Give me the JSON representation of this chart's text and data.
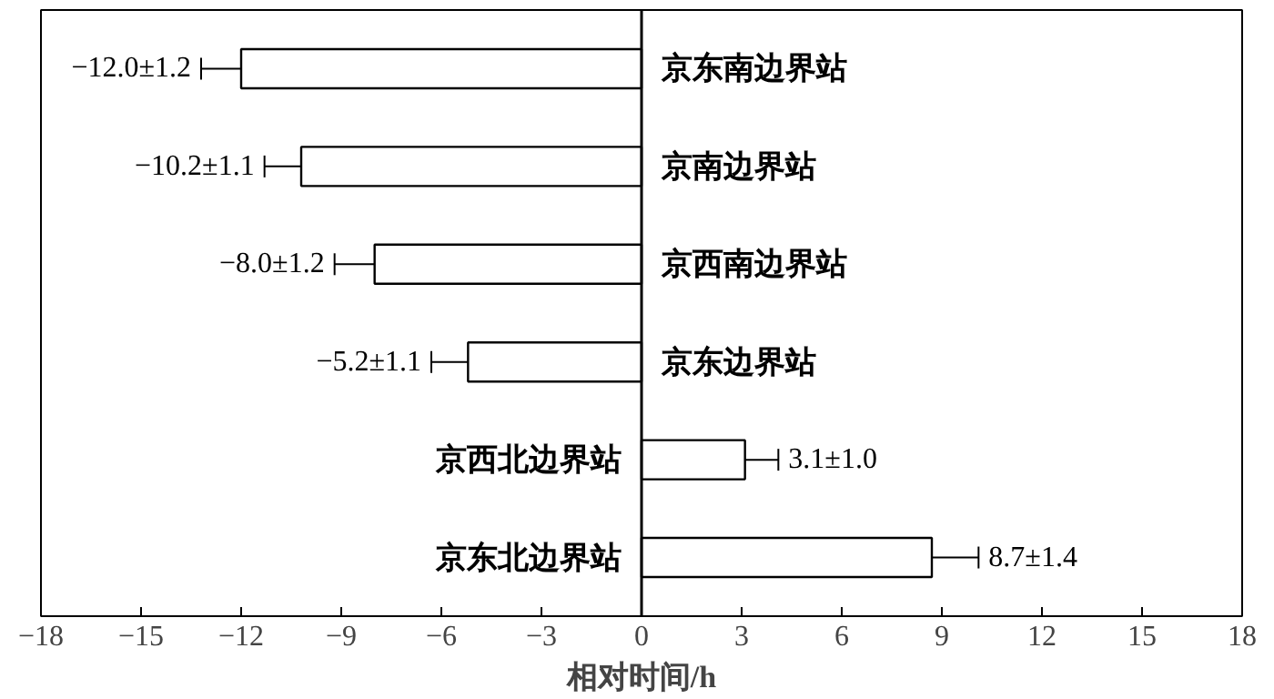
{
  "chart_data": {
    "type": "bar",
    "orientation": "horizontal",
    "xlabel": "相对时间/h",
    "categories": [
      "京东南边界站",
      "京南边界站",
      "京西南边界站",
      "京东边界站",
      "京西北边界站",
      "京东北边界站"
    ],
    "values": [
      -12.0,
      -10.2,
      -8.0,
      -5.2,
      3.1,
      8.7
    ],
    "errors": [
      1.2,
      1.1,
      1.2,
      1.1,
      1.0,
      1.4
    ],
    "value_labels": [
      "−12.0±1.2",
      "−10.2±1.1",
      "−8.0±1.2",
      "−5.2±1.1",
      "3.1±1.0",
      "8.7±1.4"
    ],
    "color": "#ffffff",
    "xlim": [
      -18,
      18
    ],
    "xticks": [
      {
        "value": -18,
        "label": "−18"
      },
      {
        "value": -15,
        "label": "−15"
      },
      {
        "value": -12,
        "label": "−12"
      },
      {
        "value": -9,
        "label": "−9"
      },
      {
        "value": -6,
        "label": "−6"
      },
      {
        "value": -3,
        "label": "−3"
      },
      0,
      3,
      6,
      9,
      12,
      15,
      18
    ],
    "tick_labels": "x",
    "grid": false
  }
}
